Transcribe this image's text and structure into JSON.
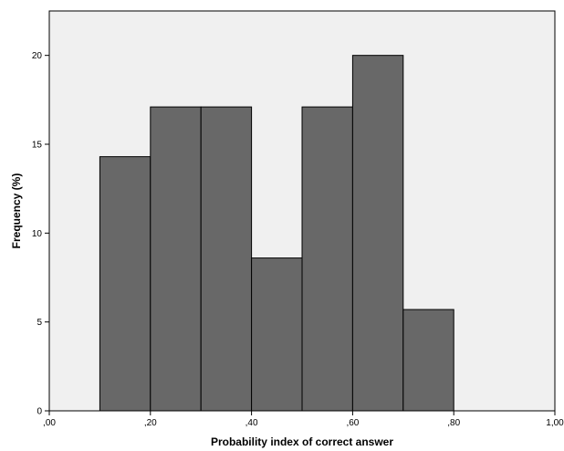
{
  "chart_data": {
    "type": "bar",
    "title": "",
    "xlabel": "Probability index of correct answer",
    "ylabel": "Frequency (%)",
    "bins": [
      {
        "start": 0.1,
        "end": 0.2,
        "value": 14.3
      },
      {
        "start": 0.2,
        "end": 0.3,
        "value": 17.1
      },
      {
        "start": 0.3,
        "end": 0.4,
        "value": 17.1
      },
      {
        "start": 0.4,
        "end": 0.5,
        "value": 8.6
      },
      {
        "start": 0.5,
        "end": 0.6,
        "value": 17.1
      },
      {
        "start": 0.6,
        "end": 0.7,
        "value": 20.0
      },
      {
        "start": 0.7,
        "end": 0.8,
        "value": 5.7
      }
    ],
    "xlim": [
      0,
      1.0
    ],
    "ylim": [
      0,
      22.5
    ],
    "x_ticks": [
      {
        "value": 0.0,
        "label": ",00"
      },
      {
        "value": 0.2,
        "label": ",20"
      },
      {
        "value": 0.4,
        "label": ",40"
      },
      {
        "value": 0.6,
        "label": ",60"
      },
      {
        "value": 0.8,
        "label": ",80"
      },
      {
        "value": 1.0,
        "label": "1,00"
      }
    ],
    "y_ticks": [
      {
        "value": 0,
        "label": "0"
      },
      {
        "value": 5,
        "label": "5"
      },
      {
        "value": 10,
        "label": "10"
      },
      {
        "value": 15,
        "label": "15"
      },
      {
        "value": 20,
        "label": "20"
      }
    ],
    "grid": false,
    "colors": {
      "plot_background": "#f0f0f0",
      "bar_fill": "#686868",
      "bar_stroke": "#000000",
      "axis": "#000000"
    }
  }
}
